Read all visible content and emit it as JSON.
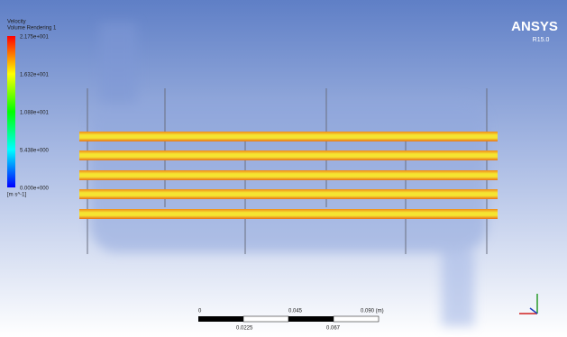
{
  "legend": {
    "title": "Velocity",
    "subtitle": "Volume Rendering 1",
    "labels": [
      "2.175e+001",
      "1.632e+001",
      "1.088e+001",
      "5.438e+000",
      "0.000e+000"
    ],
    "unit": "[m s^-1]"
  },
  "brand": {
    "name": "ANSYS",
    "version": "R15.0"
  },
  "scale": {
    "top": [
      "0",
      "0.045",
      "0.090  (m)"
    ],
    "bottom": [
      "0.0225",
      "0.067"
    ]
  }
}
